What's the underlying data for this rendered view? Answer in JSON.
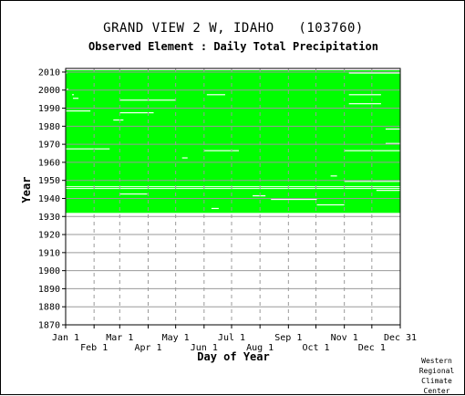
{
  "chart_data": {
    "type": "heatmap",
    "title": "GRAND VIEW 2 W, IDAHO   (103760)",
    "subtitle": "Observed Element : Daily Total Precipitation",
    "xlabel": "Day of Year",
    "ylabel": "Year",
    "xlim": [
      1,
      366
    ],
    "ylim": [
      1870,
      2012
    ],
    "x_ticks_upper": [
      {
        "label": "Jan 1",
        "day": 1
      },
      {
        "label": "Mar 1",
        "day": 60
      },
      {
        "label": "May 1",
        "day": 121
      },
      {
        "label": "Jul 1",
        "day": 182
      },
      {
        "label": "Sep 1",
        "day": 244
      },
      {
        "label": "Nov 1",
        "day": 305
      },
      {
        "label": "Dec 31",
        "day": 366
      }
    ],
    "x_ticks_lower": [
      {
        "label": "Feb 1",
        "day": 32
      },
      {
        "label": "Apr 1",
        "day": 91
      },
      {
        "label": "Jun 1",
        "day": 152
      },
      {
        "label": "Aug 1",
        "day": 213
      },
      {
        "label": "Oct 1",
        "day": 274
      },
      {
        "label": "Dec 1",
        "day": 335
      }
    ],
    "y_ticks": [
      1870,
      1880,
      1890,
      1900,
      1910,
      1920,
      1930,
      1940,
      1950,
      1960,
      1970,
      1980,
      1990,
      2000,
      2010
    ],
    "grid": true,
    "data_color": "#00ff00",
    "missing_color": "#ffffff",
    "record_years": [
      1932,
      2010
    ],
    "data_present_ranges": [
      {
        "start_year": 1932,
        "end_year": 2010,
        "start_day": 1,
        "end_day": 366
      }
    ],
    "missing_years_full": [
      1945,
      1946
    ],
    "missing_segments": [
      {
        "year": 2009,
        "start_day": 310,
        "end_day": 366
      },
      {
        "year": 2009,
        "start_day": 1,
        "end_day": 1
      },
      {
        "year": 2000,
        "start_day": 2,
        "end_day": 4
      },
      {
        "year": 1997,
        "start_day": 8,
        "end_day": 10
      },
      {
        "year": 1995,
        "start_day": 9,
        "end_day": 15
      },
      {
        "year": 1994,
        "start_day": 60,
        "end_day": 121
      },
      {
        "year": 1997,
        "start_day": 155,
        "end_day": 175
      },
      {
        "year": 1997,
        "start_day": 310,
        "end_day": 345
      },
      {
        "year": 1992,
        "start_day": 310,
        "end_day": 345
      },
      {
        "year": 1988,
        "start_day": 1,
        "end_day": 28
      },
      {
        "year": 1987,
        "start_day": 60,
        "end_day": 97
      },
      {
        "year": 1983,
        "start_day": 53,
        "end_day": 64
      },
      {
        "year": 1978,
        "start_day": 350,
        "end_day": 366
      },
      {
        "year": 1970,
        "start_day": 350,
        "end_day": 366
      },
      {
        "year": 1967,
        "start_day": 1,
        "end_day": 49
      },
      {
        "year": 1966,
        "start_day": 152,
        "end_day": 190
      },
      {
        "year": 1966,
        "start_day": 305,
        "end_day": 366
      },
      {
        "year": 1962,
        "start_day": 128,
        "end_day": 134
      },
      {
        "year": 1952,
        "start_day": 290,
        "end_day": 297
      },
      {
        "year": 1949,
        "start_day": 305,
        "end_day": 366
      },
      {
        "year": 1944,
        "start_day": 340,
        "end_day": 366
      },
      {
        "year": 1942,
        "start_day": 60,
        "end_day": 90
      },
      {
        "year": 1941,
        "start_day": 205,
        "end_day": 219
      },
      {
        "year": 1939,
        "start_day": 225,
        "end_day": 275
      },
      {
        "year": 1936,
        "start_day": 275,
        "end_day": 305
      },
      {
        "year": 1934,
        "start_day": 160,
        "end_day": 168
      }
    ],
    "credit": "Western\nRegional\nClimate\nCenter"
  }
}
